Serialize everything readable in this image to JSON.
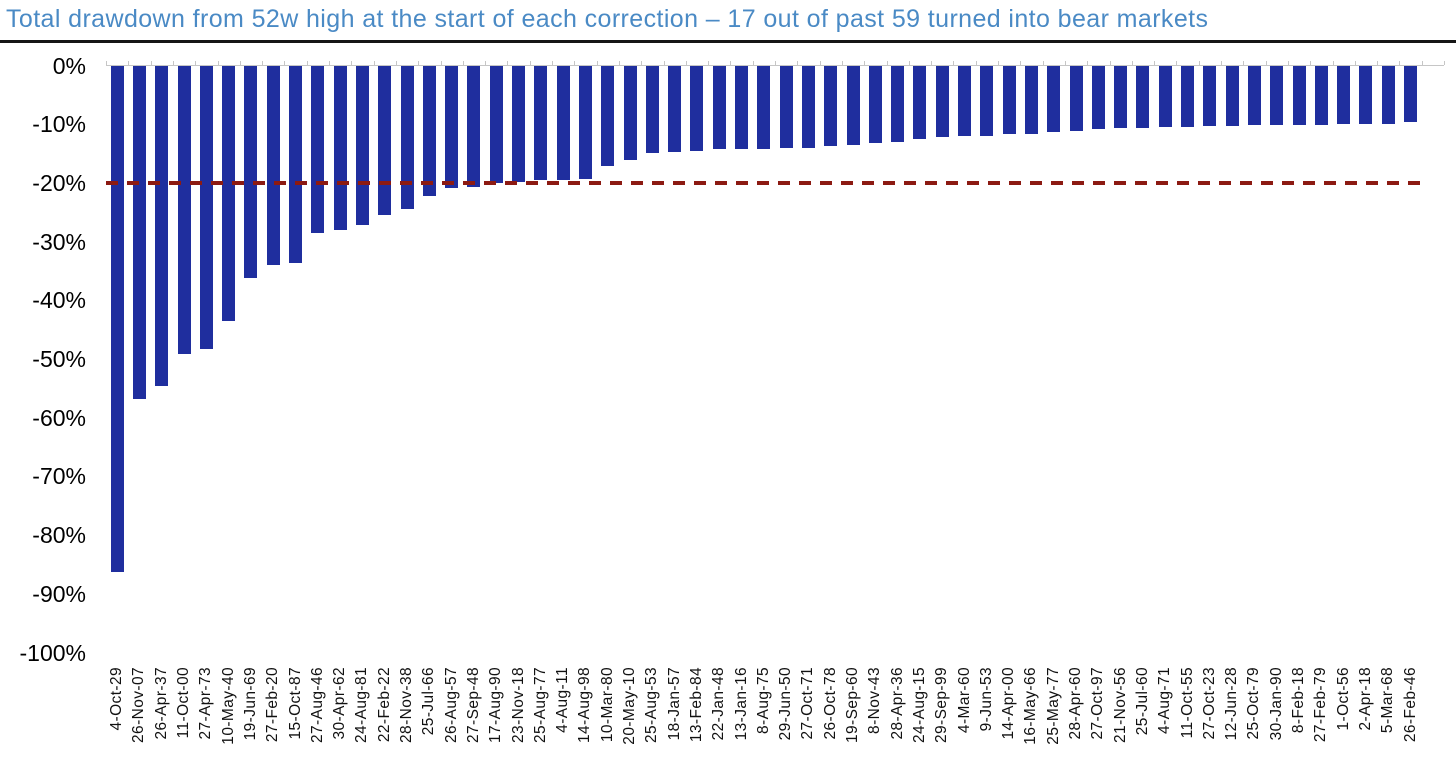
{
  "title": "Total drawdown from 52w high at the start of each correction – 17 out of past 59 turned into bear markets",
  "colors": {
    "title": "#4a8ac5",
    "bar": "#1f2e9e",
    "threshold_line": "#8c1a12",
    "axis": "#c6c6c6",
    "text": "#000000"
  },
  "chart_data": {
    "type": "bar",
    "title": "Total drawdown from 52w high at the start of each correction – 17 out of past 59 turned into bear markets",
    "xlabel": "",
    "ylabel": "",
    "unit": "%",
    "ylim": [
      -100,
      0
    ],
    "grid": false,
    "legend": null,
    "y_tick_labels": [
      "0%",
      "-10%",
      "-20%",
      "-30%",
      "-40%",
      "-50%",
      "-60%",
      "-70%",
      "-80%",
      "-90%",
      "-100%"
    ],
    "threshold_line": {
      "value": -20,
      "style": "dashed",
      "meaning": "bear market threshold"
    },
    "annotations": {
      "bear_markets": 17,
      "total_corrections": 59
    },
    "categories": [
      "4-Oct-29",
      "26-Nov-07",
      "26-Apr-37",
      "11-Oct-00",
      "27-Apr-73",
      "10-May-40",
      "19-Jun-69",
      "27-Feb-20",
      "15-Oct-87",
      "27-Aug-46",
      "30-Apr-62",
      "24-Aug-81",
      "22-Feb-22",
      "28-Nov-38",
      "25-Jul-66",
      "26-Aug-57",
      "27-Sep-48",
      "17-Aug-90",
      "23-Nov-18",
      "25-Aug-77",
      "4-Aug-11",
      "14-Aug-98",
      "10-Mar-80",
      "20-May-10",
      "25-Aug-53",
      "18-Jan-57",
      "13-Feb-84",
      "22-Jan-48",
      "13-Jan-16",
      "8-Aug-75",
      "29-Jun-50",
      "27-Oct-71",
      "26-Oct-78",
      "19-Sep-60",
      "8-Nov-43",
      "28-Apr-36",
      "24-Aug-15",
      "29-Sep-99",
      "4-Mar-60",
      "9-Jun-53",
      "14-Apr-00",
      "16-May-66",
      "25-May-77",
      "28-Apr-60",
      "27-Oct-97",
      "21-Nov-56",
      "25-Jul-60",
      "4-Aug-71",
      "11-Oct-55",
      "27-Oct-23",
      "12-Jun-28",
      "25-Oct-79",
      "30-Jan-90",
      "8-Feb-18",
      "27-Feb-79",
      "1-Oct-56",
      "2-Apr-18",
      "5-Mar-68",
      "26-Feb-46"
    ],
    "values": [
      -86.2,
      -56.8,
      -54.5,
      -49.1,
      -48.2,
      -43.4,
      -36.1,
      -33.9,
      -33.5,
      -28.4,
      -28.0,
      -27.1,
      -25.4,
      -24.3,
      -22.2,
      -20.7,
      -20.6,
      -19.9,
      -19.8,
      -19.4,
      -19.4,
      -19.3,
      -17.1,
      -16.0,
      -14.8,
      -14.6,
      -14.4,
      -14.2,
      -14.2,
      -14.1,
      -14.0,
      -13.9,
      -13.6,
      -13.4,
      -13.1,
      -12.9,
      -12.4,
      -12.1,
      -12.0,
      -11.9,
      -11.6,
      -11.5,
      -11.3,
      -11.1,
      -10.8,
      -10.6,
      -10.6,
      -10.4,
      -10.4,
      -10.3,
      -10.2,
      -10.1,
      -10.1,
      -10.0,
      -10.0,
      -9.9,
      -9.8,
      -9.8,
      -9.6
    ]
  }
}
